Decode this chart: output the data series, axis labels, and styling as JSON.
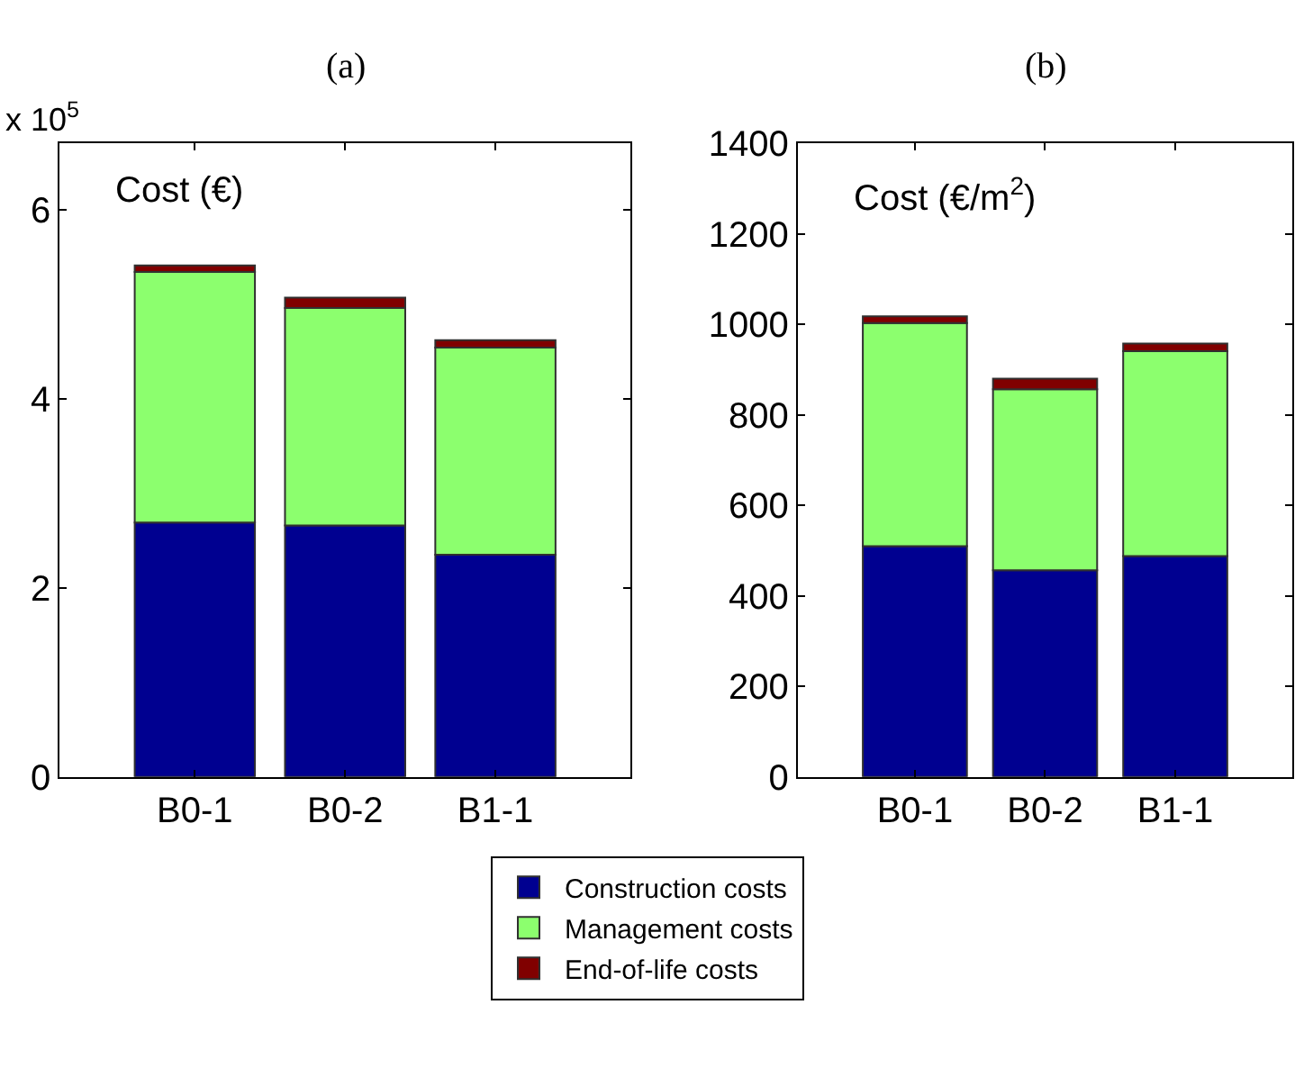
{
  "chart_data": [
    {
      "type": "bar",
      "title": "(a)",
      "stacked": true,
      "categories": [
        "B0-1",
        "B0-2",
        "B1-1"
      ],
      "ylim": [
        0,
        6.7
      ],
      "yticks": [
        0,
        2,
        4,
        6
      ],
      "legend": "bottom",
      "annotations": [
        "x 10$^{5}$",
        "Cost (€)"
      ],
      "series": [
        {
          "name": "Construction costs",
          "color": "#000090",
          "values": [
            2.69,
            2.66,
            2.35
          ]
        },
        {
          "name": "Management costs",
          "color": "#8cff6e",
          "values": [
            2.65,
            2.3,
            2.19
          ]
        },
        {
          "name": "End-of-life costs",
          "color": "#800000",
          "values": [
            0.07,
            0.11,
            0.08
          ]
        }
      ]
    },
    {
      "type": "bar",
      "title": "(b)",
      "stacked": true,
      "categories": [
        "B0-1",
        "B0-2",
        "B1-1"
      ],
      "ylim": [
        0,
        1400
      ],
      "yticks": [
        0,
        200,
        400,
        600,
        800,
        1000,
        1200,
        1400
      ],
      "legend": false,
      "annotations": [
        "Cost (€/m$^{2}$)"
      ],
      "series": [
        {
          "color": "#000090",
          "values": [
            510,
            457,
            488
          ]
        },
        {
          "color": "#8cff6e",
          "values": [
            493,
            400,
            453
          ]
        },
        {
          "color": "#800000",
          "values": [
            15,
            23,
            17
          ]
        }
      ]
    }
  ]
}
